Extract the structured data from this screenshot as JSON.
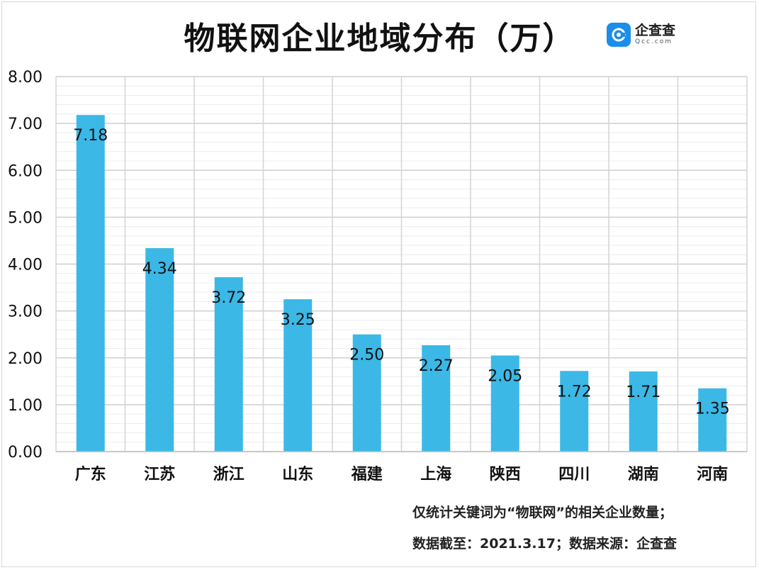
{
  "title": "物联网企业地域分布（万）",
  "logo": {
    "brand": "企查查",
    "domain": "Qcc.com",
    "icon": "qcc-logo-icon"
  },
  "notes": [
    "仅统计关键词为“物联网”的相关企业数量；",
    "数据截至：2021.3.17；数据来源：企查查"
  ],
  "colors": {
    "bar": "#3bb8e6",
    "grid": "#d0d0d0",
    "brand": "#1a8ee8"
  },
  "chart_data": {
    "type": "bar",
    "categories": [
      "广东",
      "江苏",
      "浙江",
      "山东",
      "福建",
      "上海",
      "陕西",
      "四川",
      "湖南",
      "河南"
    ],
    "values": [
      7.18,
      4.34,
      3.72,
      3.25,
      2.5,
      2.27,
      2.05,
      1.72,
      1.71,
      1.35
    ],
    "value_labels": [
      "7.18",
      "4.34",
      "3.72",
      "3.25",
      "2.50",
      "2.27",
      "2.05",
      "1.72",
      "1.71",
      "1.35"
    ],
    "ylim": [
      0,
      8
    ],
    "yticks": [
      "0.00",
      "1.00",
      "2.00",
      "3.00",
      "4.00",
      "5.00",
      "6.00",
      "7.00",
      "8.00"
    ],
    "grid": true,
    "legend": "none",
    "xlabel": "",
    "ylabel": ""
  }
}
